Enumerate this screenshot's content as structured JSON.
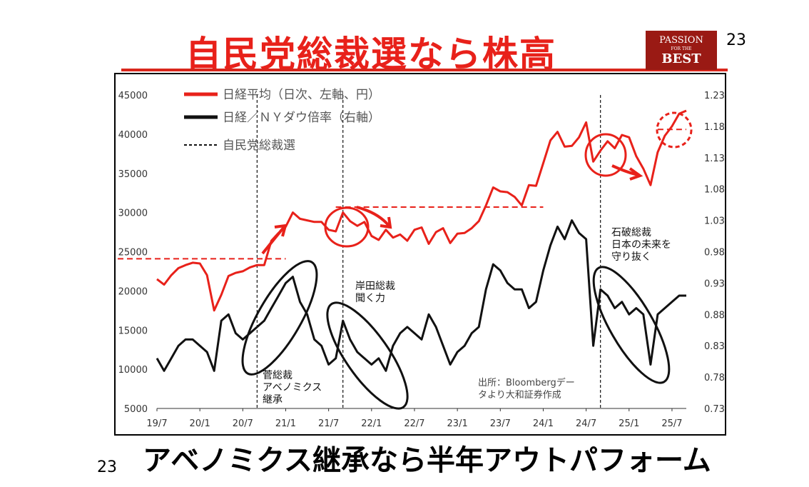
{
  "slide": {
    "title": "自民党総裁選なら株高",
    "brand": {
      "line1": "PASSION",
      "line2": "FOR THE",
      "line3": "BEST"
    },
    "page_number_top": "23",
    "page_number_bottom": "23",
    "footer": "アベノミクス継承なら半年アウトパフォーム"
  },
  "chart_data": {
    "type": "line",
    "x_ticks": [
      "19/7",
      "20/1",
      "20/7",
      "21/1",
      "21/7",
      "22/1",
      "22/7",
      "23/1",
      "23/7",
      "24/1",
      "24/7",
      "25/1",
      "25/7"
    ],
    "y_left_ticks": [
      5000,
      10000,
      15000,
      20000,
      25000,
      30000,
      35000,
      40000,
      45000
    ],
    "y_right_ticks": [
      "0.73",
      "0.78",
      "0.83",
      "0.88",
      "0.93",
      "0.98",
      "1.03",
      "1.08",
      "1.13",
      "1.18",
      "1.23"
    ],
    "ylim_left": [
      5000,
      45000
    ],
    "ylim_right": [
      0.73,
      1.23
    ],
    "legend": [
      {
        "label": "日経平均（日次、左軸、円）",
        "color": "#e8211a",
        "style": "solid"
      },
      {
        "label": "日経／ＮＹダウ倍率（右軸）",
        "color": "#111111",
        "style": "solid"
      },
      {
        "label": "自民党総裁選",
        "color": "#111111",
        "style": "dashed"
      }
    ],
    "series": [
      {
        "name": "日経平均（日次、左軸、円）",
        "axis": "left",
        "color": "#e8211a",
        "points": [
          [
            "19/7",
            21500
          ],
          [
            "19/8",
            20800
          ],
          [
            "19/9",
            22000
          ],
          [
            "19/10",
            22900
          ],
          [
            "19/11",
            23300
          ],
          [
            "19/12",
            23600
          ],
          [
            "20/1",
            23500
          ],
          [
            "20/2",
            22000
          ],
          [
            "20/3",
            17500
          ],
          [
            "20/4",
            19500
          ],
          [
            "20/5",
            21900
          ],
          [
            "20/6",
            22300
          ],
          [
            "20/7",
            22500
          ],
          [
            "20/8",
            23000
          ],
          [
            "20/9",
            23300
          ],
          [
            "20/10",
            23300
          ],
          [
            "20/11",
            26400
          ],
          [
            "20/12",
            27400
          ],
          [
            "21/1",
            28200
          ],
          [
            "21/2",
            30000
          ],
          [
            "21/3",
            29200
          ],
          [
            "21/4",
            29000
          ],
          [
            "21/5",
            28800
          ],
          [
            "21/6",
            28800
          ],
          [
            "21/7",
            27800
          ],
          [
            "21/8",
            27600
          ],
          [
            "21/9",
            30000
          ],
          [
            "21/10",
            28900
          ],
          [
            "21/11",
            28300
          ],
          [
            "21/12",
            28800
          ],
          [
            "22/1",
            27000
          ],
          [
            "22/2",
            26500
          ],
          [
            "22/3",
            27800
          ],
          [
            "22/4",
            26800
          ],
          [
            "22/5",
            27200
          ],
          [
            "22/6",
            26400
          ],
          [
            "22/7",
            27800
          ],
          [
            "22/8",
            28100
          ],
          [
            "22/9",
            26000
          ],
          [
            "22/10",
            27500
          ],
          [
            "22/11",
            28000
          ],
          [
            "22/12",
            26100
          ],
          [
            "23/1",
            27300
          ],
          [
            "23/2",
            27400
          ],
          [
            "23/3",
            28000
          ],
          [
            "23/4",
            28900
          ],
          [
            "23/5",
            30900
          ],
          [
            "23/6",
            33200
          ],
          [
            "23/7",
            32700
          ],
          [
            "23/8",
            32600
          ],
          [
            "23/9",
            32000
          ],
          [
            "23/10",
            30900
          ],
          [
            "23/11",
            33500
          ],
          [
            "23/12",
            33400
          ],
          [
            "24/1",
            36300
          ],
          [
            "24/2",
            39200
          ],
          [
            "24/3",
            40300
          ],
          [
            "24/4",
            38400
          ],
          [
            "24/5",
            38500
          ],
          [
            "24/6",
            39600
          ],
          [
            "24/7",
            41500
          ],
          [
            "24/8",
            36500
          ],
          [
            "24/9",
            37900
          ],
          [
            "24/10",
            39100
          ],
          [
            "24/11",
            38200
          ],
          [
            "24/12",
            39900
          ],
          [
            "25/1",
            39600
          ],
          [
            "25/2",
            37200
          ],
          [
            "25/3",
            35600
          ],
          [
            "25/4",
            33500
          ],
          [
            "25/5",
            37700
          ],
          [
            "25/6",
            39800
          ],
          [
            "25/7",
            41000
          ],
          [
            "25/8",
            42600
          ],
          [
            "25/9",
            43000
          ]
        ]
      },
      {
        "name": "日経／ＮＹダウ倍率（右軸）",
        "axis": "right",
        "color": "#111111",
        "points": [
          [
            "19/7",
            0.81
          ],
          [
            "19/8",
            0.79
          ],
          [
            "19/9",
            0.81
          ],
          [
            "19/10",
            0.83
          ],
          [
            "19/11",
            0.84
          ],
          [
            "19/12",
            0.84
          ],
          [
            "20/1",
            0.83
          ],
          [
            "20/2",
            0.82
          ],
          [
            "20/3",
            0.79
          ],
          [
            "20/4",
            0.87
          ],
          [
            "20/5",
            0.88
          ],
          [
            "20/6",
            0.85
          ],
          [
            "20/7",
            0.84
          ],
          [
            "20/8",
            0.85
          ],
          [
            "20/9",
            0.86
          ],
          [
            "20/10",
            0.87
          ],
          [
            "20/11",
            0.89
          ],
          [
            "20/12",
            0.91
          ],
          [
            "21/1",
            0.93
          ],
          [
            "21/2",
            0.94
          ],
          [
            "21/3",
            0.9
          ],
          [
            "21/4",
            0.88
          ],
          [
            "21/5",
            0.84
          ],
          [
            "21/6",
            0.83
          ],
          [
            "21/7",
            0.8
          ],
          [
            "21/8",
            0.81
          ],
          [
            "21/9",
            0.87
          ],
          [
            "21/10",
            0.84
          ],
          [
            "21/11",
            0.82
          ],
          [
            "21/12",
            0.81
          ],
          [
            "22/1",
            0.8
          ],
          [
            "22/2",
            0.81
          ],
          [
            "22/3",
            0.79
          ],
          [
            "22/4",
            0.83
          ],
          [
            "22/5",
            0.85
          ],
          [
            "22/6",
            0.86
          ],
          [
            "22/7",
            0.85
          ],
          [
            "22/8",
            0.84
          ],
          [
            "22/9",
            0.88
          ],
          [
            "22/10",
            0.86
          ],
          [
            "22/11",
            0.83
          ],
          [
            "22/12",
            0.8
          ],
          [
            "23/1",
            0.82
          ],
          [
            "23/2",
            0.83
          ],
          [
            "23/3",
            0.85
          ],
          [
            "23/4",
            0.86
          ],
          [
            "23/5",
            0.92
          ],
          [
            "23/6",
            0.96
          ],
          [
            "23/7",
            0.95
          ],
          [
            "23/8",
            0.93
          ],
          [
            "23/9",
            0.92
          ],
          [
            "23/10",
            0.92
          ],
          [
            "23/11",
            0.89
          ],
          [
            "23/12",
            0.9
          ],
          [
            "24/1",
            0.95
          ],
          [
            "24/2",
            0.99
          ],
          [
            "24/3",
            1.02
          ],
          [
            "24/4",
            1.0
          ],
          [
            "24/5",
            1.03
          ],
          [
            "24/6",
            1.01
          ],
          [
            "24/7",
            1.0
          ],
          [
            "24/8",
            0.83
          ],
          [
            "24/9",
            0.92
          ],
          [
            "24/10",
            0.91
          ],
          [
            "24/11",
            0.89
          ],
          [
            "24/12",
            0.9
          ],
          [
            "25/1",
            0.88
          ],
          [
            "25/2",
            0.89
          ],
          [
            "25/3",
            0.88
          ],
          [
            "25/4",
            0.8
          ],
          [
            "25/5",
            0.88
          ],
          [
            "25/6",
            0.89
          ],
          [
            "25/7",
            0.9
          ],
          [
            "25/8",
            0.91
          ],
          [
            "25/9",
            0.91
          ]
        ]
      }
    ],
    "event_lines": [
      "20/9",
      "21/9",
      "24/9"
    ],
    "reference_levels_left": [
      {
        "from": "19/7",
        "to": "21/1",
        "value": 24100
      },
      {
        "from": "21/8",
        "to": "24/1",
        "value": 30700
      },
      {
        "from": "25/5",
        "to": "25/9",
        "value": 40600
      }
    ],
    "annotations": {
      "suga": "菅総裁\nアベノミクス\n継承",
      "kishida": "岸田総裁\n聞く力",
      "ishiba": "石破総裁\n日本の未来を\n守り抜く",
      "source": "出所：Bloombergデー\nタより大和証券作成"
    }
  }
}
